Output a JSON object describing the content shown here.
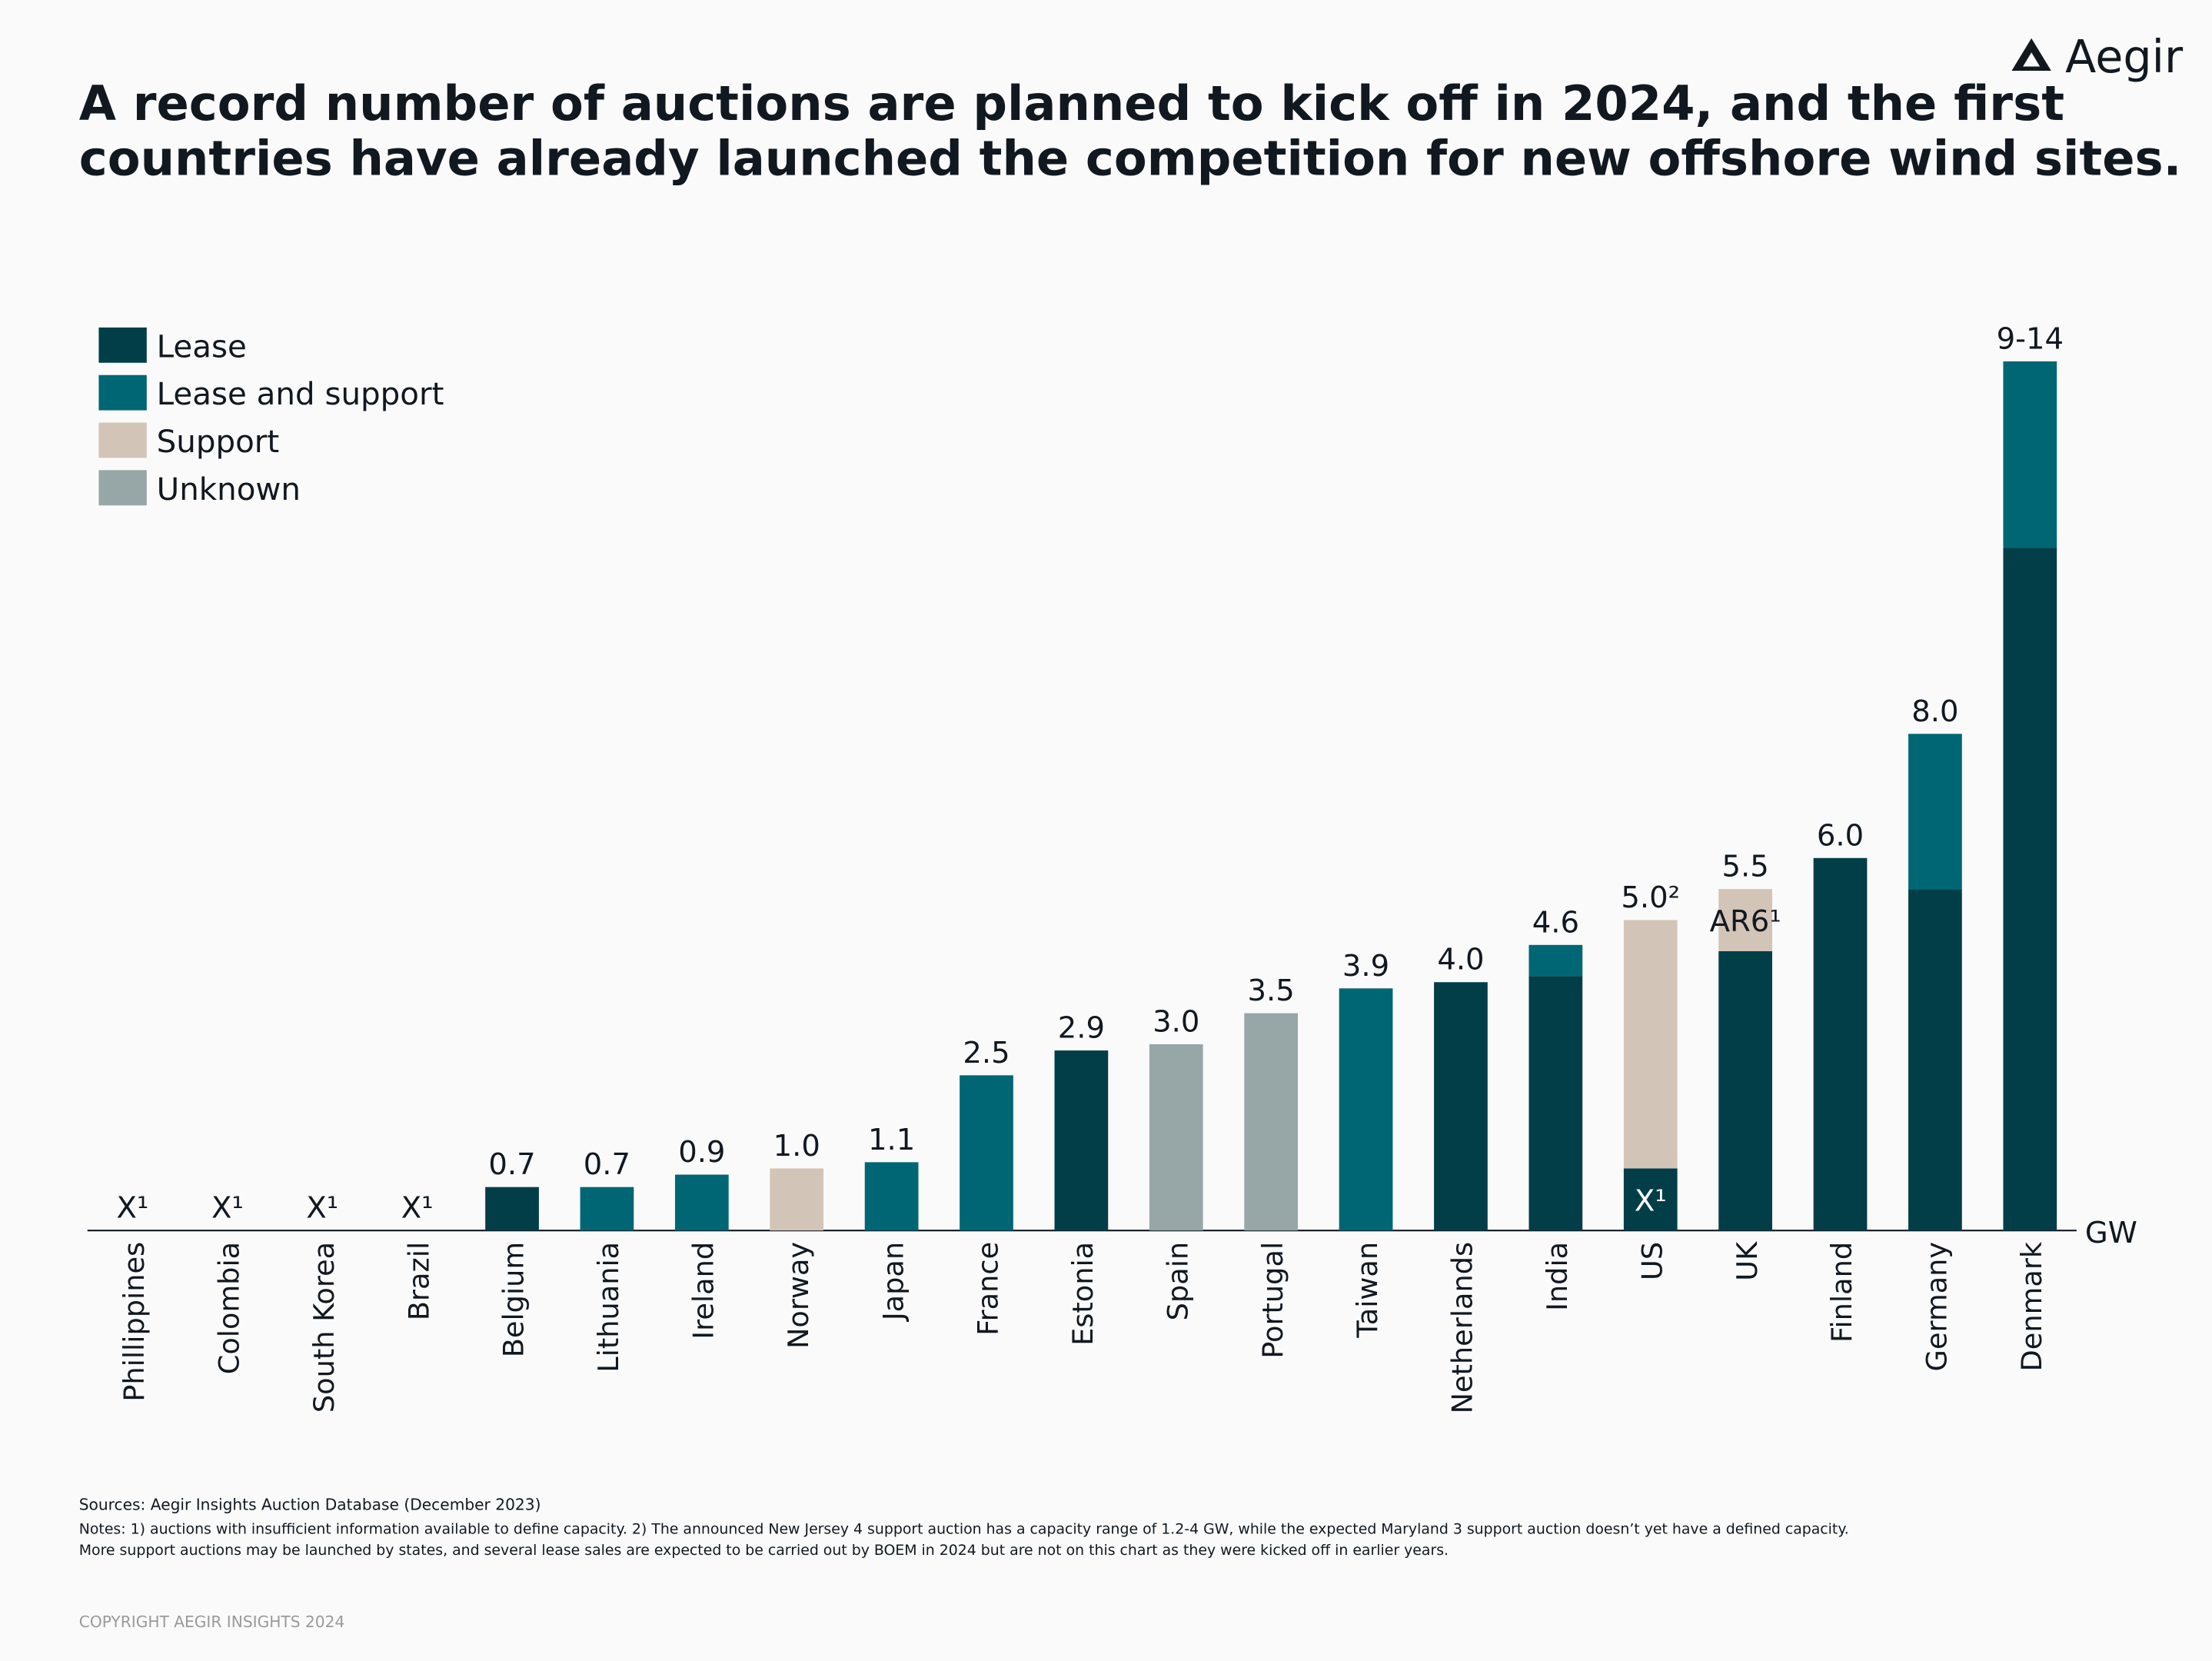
{
  "chart_data": {
    "type": "bar",
    "stacked": true,
    "logo": "Aegir",
    "title_lines": [
      "A record number of auctions are planned to kick off in 2024, and the first",
      "countries have already launched the competition for new offshore wind sites."
    ],
    "unit": "GW",
    "categories": [
      "Phillippines",
      "Colombia",
      "South Korea",
      "Brazil",
      "Belgium",
      "Lithuania",
      "Ireland",
      "Norway",
      "Japan",
      "France",
      "Estonia",
      "Spain",
      "Portugal",
      "Taiwan",
      "Netherlands",
      "India",
      "US",
      "UK",
      "Finland",
      "Germany",
      "Denmark"
    ],
    "value_labels": [
      "X¹",
      "X¹",
      "X¹",
      "X¹",
      "0.7",
      "0.7",
      "0.9",
      "1.0",
      "1.1",
      "2.5",
      "2.9",
      "3.0",
      "3.5",
      "3.9",
      "4.0",
      "4.6",
      "5.0²",
      "5.5",
      "6.0",
      "8.0",
      "9-14"
    ],
    "series": [
      {
        "name": "Lease",
        "color": "#023e48",
        "values": [
          null,
          null,
          null,
          null,
          0.7,
          null,
          null,
          null,
          null,
          null,
          2.9,
          null,
          null,
          null,
          4.0,
          4.1,
          1.0,
          4.5,
          6.0,
          5.5,
          11.0
        ],
        "value_labels": [
          null,
          null,
          null,
          null,
          null,
          null,
          null,
          null,
          null,
          null,
          null,
          null,
          null,
          null,
          null,
          null,
          "X¹",
          null,
          null,
          null,
          null
        ]
      },
      {
        "name": "Lease and support",
        "color": "#006673",
        "values": [
          null,
          null,
          null,
          null,
          null,
          0.7,
          0.9,
          null,
          1.1,
          2.5,
          null,
          null,
          null,
          3.9,
          null,
          0.5,
          null,
          null,
          null,
          2.5,
          3.0
        ]
      },
      {
        "name": "Support",
        "color": "#d3c4b8",
        "values": [
          null,
          null,
          null,
          null,
          null,
          null,
          null,
          1.0,
          null,
          null,
          null,
          null,
          null,
          null,
          null,
          null,
          4.0,
          1.0,
          null,
          null,
          null
        ],
        "value_labels": [
          null,
          null,
          null,
          null,
          null,
          null,
          null,
          null,
          null,
          null,
          null,
          null,
          null,
          null,
          null,
          null,
          null,
          "AR6¹",
          null,
          null,
          null
        ]
      },
      {
        "name": "Unknown",
        "color": "#97a6a6",
        "values": [
          null,
          null,
          null,
          null,
          null,
          null,
          null,
          null,
          null,
          null,
          null,
          3.0,
          3.5,
          null,
          null,
          null,
          null,
          null,
          null,
          null,
          null
        ]
      }
    ],
    "sources": "Sources: Aegir Insights Auction Database (December 2023)",
    "notes_lines": [
      "Notes: 1) auctions with insufficient information available to define capacity. 2) The announced New Jersey 4 support auction has a capacity range of 1.2-4 GW, while the expected Maryland 3 support auction doesn’t yet have a defined capacity.",
      "More support auctions may be launched by states, and several lease sales are expected to be carried out by BOEM in 2024 but are not on this chart as they were kicked off in earlier years."
    ],
    "copyright": "COPYRIGHT AEGIR INSIGHTS 2024"
  }
}
